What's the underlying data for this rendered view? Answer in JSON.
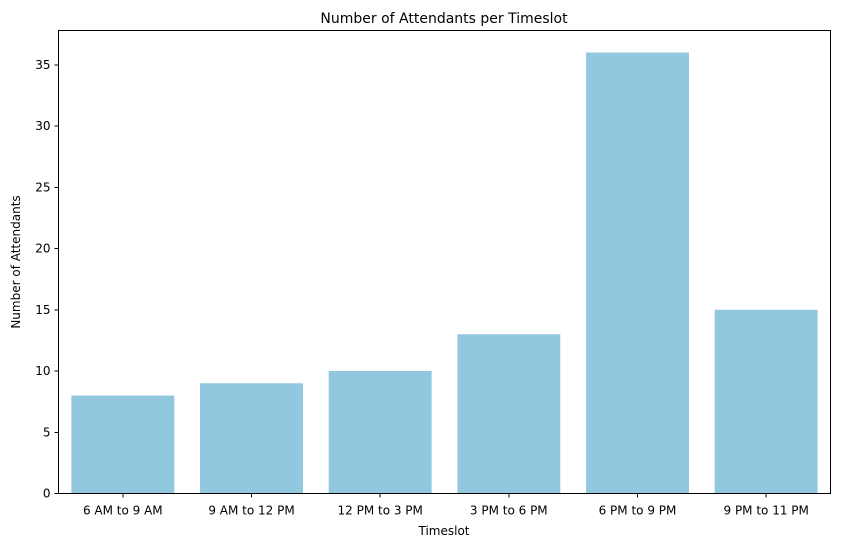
{
  "chart_data": {
    "type": "bar",
    "title": "Number of Attendants per Timeslot",
    "xlabel": "Timeslot",
    "ylabel": "Number of Attendants",
    "categories": [
      "6 AM to 9 AM",
      "9 AM to 12 PM",
      "12 PM to 3 PM",
      "3 PM to 6 PM",
      "6 PM to 9 PM",
      "9 PM to 11 PM"
    ],
    "values": [
      8,
      9,
      10,
      13,
      36,
      15
    ],
    "ylim": [
      0,
      37.8
    ],
    "yticks": [
      0,
      5,
      10,
      15,
      20,
      25,
      30,
      35
    ],
    "bar_color": "#92c8df",
    "grid": false,
    "legend": "none"
  }
}
